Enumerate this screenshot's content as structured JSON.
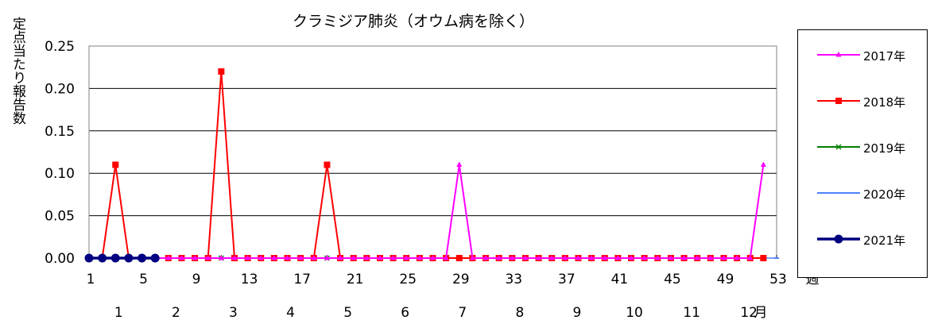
{
  "chart_data": {
    "type": "line",
    "title": "クラミジア肺炎（オウム病を除く）",
    "ylabel": "定点当たり報告数",
    "xlabel": "週",
    "month_label": "月",
    "ylim": [
      0,
      0.25
    ],
    "xlim": [
      1,
      53
    ],
    "y_ticks": [
      "0.00",
      "0.05",
      "0.10",
      "0.15",
      "0.20",
      "0.25"
    ],
    "x_ticks": [
      1,
      5,
      9,
      13,
      17,
      21,
      25,
      29,
      33,
      37,
      41,
      45,
      49,
      53
    ],
    "months": [
      "1",
      "2",
      "3",
      "4",
      "5",
      "6",
      "7",
      "8",
      "9",
      "10",
      "11",
      "12"
    ],
    "grid": "horizontal",
    "legend": "right",
    "series": [
      {
        "name": "2017年",
        "color": "#ff00ff",
        "marker": "triangle",
        "values": [
          0,
          0,
          0,
          0,
          0,
          0,
          0,
          0,
          0,
          0,
          0,
          0,
          0,
          0,
          0,
          0,
          0,
          0,
          0,
          0,
          0,
          0,
          0,
          0,
          0,
          0,
          0,
          0,
          0.11,
          0,
          0,
          0,
          0,
          0,
          0,
          0,
          0,
          0,
          0,
          0,
          0,
          0,
          0,
          0,
          0,
          0,
          0,
          0,
          0,
          0,
          0,
          0.11
        ]
      },
      {
        "name": "2018年",
        "color": "#ff0000",
        "marker": "square",
        "values": [
          0,
          0,
          0.11,
          0,
          0,
          0,
          0,
          0,
          0,
          0,
          0.22,
          0,
          0,
          0,
          0,
          0,
          0,
          0,
          0.11,
          0,
          0,
          0,
          0,
          0,
          0,
          0,
          0,
          0,
          0,
          0,
          0,
          0,
          0,
          0,
          0,
          0,
          0,
          0,
          0,
          0,
          0,
          0,
          0,
          0,
          0,
          0,
          0,
          0,
          0,
          0,
          0,
          0
        ]
      },
      {
        "name": "2019年",
        "color": "#008000",
        "marker": "x",
        "values": [
          0,
          0,
          0,
          0,
          0,
          0,
          0,
          0,
          0,
          0,
          0,
          0,
          0,
          0,
          0,
          0,
          0,
          0,
          0,
          0,
          0,
          0,
          0,
          0,
          0,
          0,
          0,
          0,
          0,
          0,
          0,
          0,
          0,
          0,
          0,
          0,
          0,
          0,
          0,
          0,
          0,
          0,
          0,
          0,
          0,
          0,
          0,
          0,
          0,
          0,
          0,
          0
        ]
      },
      {
        "name": "2020年",
        "color": "#4f81ff",
        "marker": "dash",
        "values": [
          0,
          0,
          0,
          0,
          0,
          0,
          0,
          0,
          0,
          0,
          0,
          0,
          0,
          0,
          0,
          0,
          0,
          0,
          0,
          0,
          0,
          0,
          0,
          0,
          0,
          0,
          0,
          0,
          0,
          0,
          0,
          0,
          0,
          0,
          0,
          0,
          0,
          0,
          0,
          0,
          0,
          0,
          0,
          0,
          0,
          0,
          0,
          0,
          0,
          0,
          0,
          0,
          0
        ]
      },
      {
        "name": "2021年",
        "color": "#000080",
        "marker": "circle",
        "values": [
          0,
          0,
          0,
          0,
          0,
          0
        ]
      }
    ]
  }
}
